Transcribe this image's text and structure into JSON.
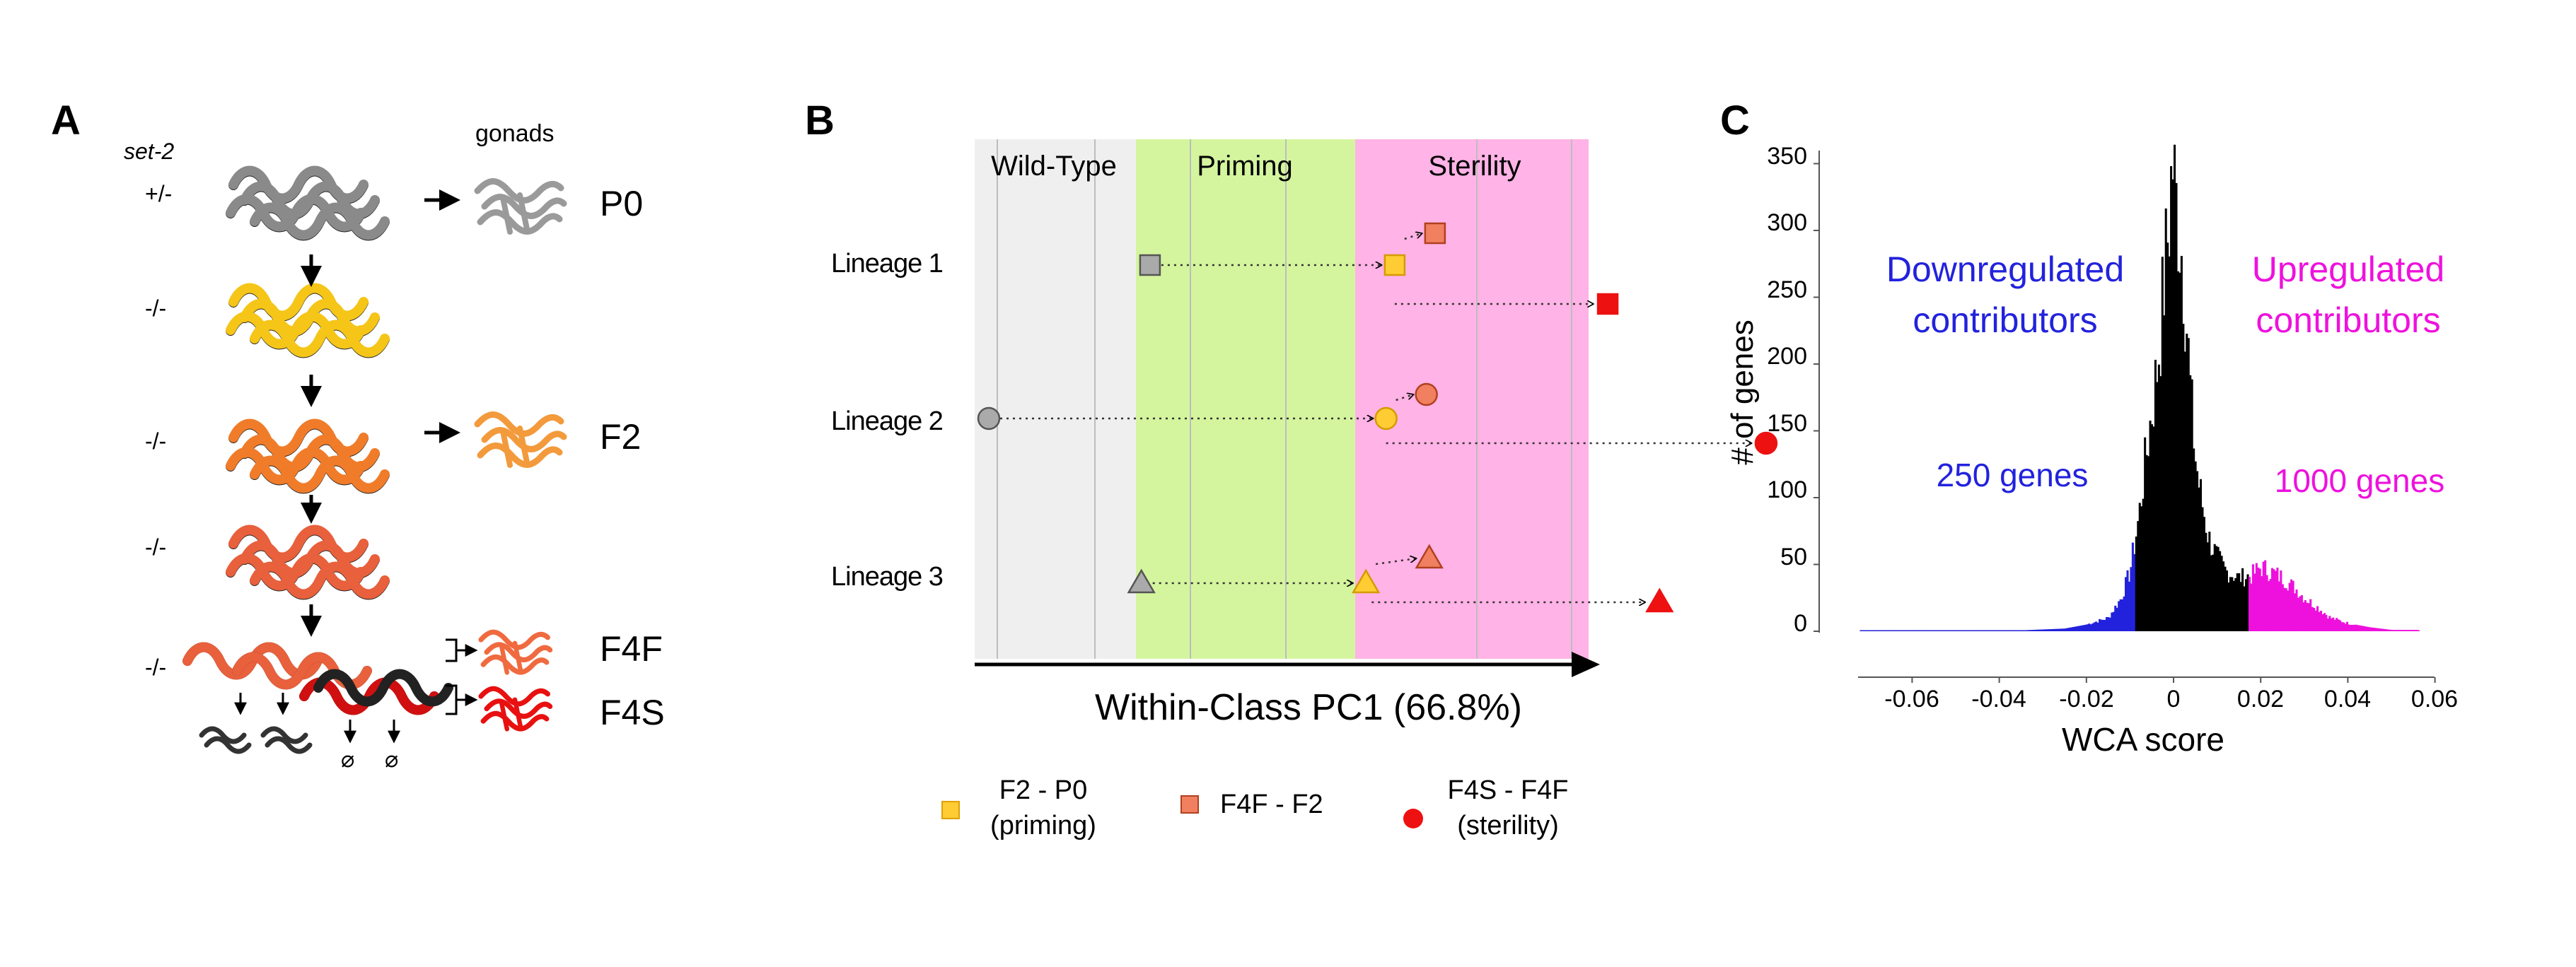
{
  "panels": {
    "a": {
      "letter": "A",
      "genotype_header": "set-2",
      "gonads_header": "gonads",
      "genotypes": [
        "+/-",
        "-/-",
        "-/-",
        "-/-",
        "-/-"
      ],
      "generation_labels": [
        "P0",
        "F2",
        "F4F",
        "F4S"
      ],
      "sterile_marks": [
        "⌀",
        "⌀"
      ],
      "colors": {
        "p0": "#333333",
        "f1": "#f5c518",
        "f2": "#f07c2a",
        "f3": "#e8603c",
        "f4f": "#e8603c",
        "f4s": "#e01010",
        "gonad_p0": "#9a9a9a"
      }
    },
    "b": {
      "letter": "B",
      "regions": [
        {
          "label": "Wild-Type",
          "color": "#efefef"
        },
        {
          "label": "Priming",
          "color": "#d4f59e"
        },
        {
          "label": "Sterility",
          "color": "#ffb3e6"
        }
      ],
      "lineages": [
        "Lineage 1",
        "Lineage 2",
        "Lineage 3"
      ],
      "axis_label": "Within-Class PC1 (66.8%)",
      "legend": [
        {
          "label_line1": "F2 - P0",
          "label_line2": "(priming)",
          "color": "#ffcc33"
        },
        {
          "label_line1": "F4F - F2",
          "label_line2": "",
          "color": "#f08060"
        },
        {
          "label_line1": "F4S - F4F",
          "label_line2": "(sterility)",
          "color": "#ee1111"
        }
      ]
    },
    "c": {
      "letter": "C",
      "ylabel": "# of genes",
      "xlabel": "WCA score",
      "yticks": [
        "350",
        "300",
        "250",
        "200",
        "150",
        "100",
        "50",
        "0"
      ],
      "xticks": [
        "-0.06",
        "-0.04",
        "-0.02",
        "0",
        "0.02",
        "0.04",
        "0.06"
      ],
      "down_label_1": "Downregulated",
      "down_label_2": "contributors",
      "up_label_1": "Upregulated",
      "up_label_2": "contributors",
      "down_count": "250 genes",
      "up_count": "1000 genes",
      "colors": {
        "down": "#2222dd",
        "up": "#ee11dd",
        "center": "#000000"
      }
    }
  },
  "chart_data": [
    {
      "type": "scatter",
      "panel": "B",
      "xlabel": "Within-Class PC1 (66.8%)",
      "ylabel": "",
      "regions": [
        "Wild-Type",
        "Priming",
        "Sterility"
      ],
      "categories": [
        "Lineage 1",
        "Lineage 2",
        "Lineage 3"
      ],
      "series": [
        {
          "name": "F2 - P0",
          "points": [
            {
              "lineage": "Lineage 1",
              "x_from": 0.56,
              "x_to": 1.41
            },
            {
              "lineage": "Lineage 2",
              "x_from": 0.0,
              "x_to": 1.38
            },
            {
              "lineage": "Lineage 3",
              "x_from": 0.53,
              "x_to": 1.31
            }
          ]
        },
        {
          "name": "F4F - F2",
          "points": [
            {
              "lineage": "Lineage 1",
              "x_from": 1.41,
              "x_to": 1.55
            },
            {
              "lineage": "Lineage 2",
              "x_from": 1.38,
              "x_to": 1.52
            },
            {
              "lineage": "Lineage 3",
              "x_from": 1.31,
              "x_to": 1.53
            }
          ]
        },
        {
          "name": "F4S - F4F",
          "points": [
            {
              "lineage": "Lineage 1",
              "x_from": 1.41,
              "x_to": 2.15
            },
            {
              "lineage": "Lineage 2",
              "x_from": 1.38,
              "x_to": 2.7
            },
            {
              "lineage": "Lineage 3",
              "x_from": 1.33,
              "x_to": 2.33
            }
          ]
        }
      ]
    },
    {
      "type": "bar",
      "panel": "C",
      "xlabel": "WCA score",
      "ylabel": "# of genes",
      "xlim": [
        -0.072,
        0.056
      ],
      "ylim": [
        0,
        350
      ],
      "x_ticks": [
        -0.06,
        -0.04,
        -0.02,
        0,
        0.02,
        0.04,
        0.06
      ],
      "y_ticks": [
        0,
        50,
        100,
        150,
        200,
        250,
        300,
        350
      ],
      "profile": [
        [
          -0.072,
          0
        ],
        [
          -0.04,
          0
        ],
        [
          -0.025,
          2
        ],
        [
          -0.02,
          5
        ],
        [
          -0.015,
          10
        ],
        [
          -0.012,
          25
        ],
        [
          -0.01,
          45
        ],
        [
          -0.008,
          85
        ],
        [
          -0.006,
          140
        ],
        [
          -0.004,
          190
        ],
        [
          -0.003,
          225
        ],
        [
          -0.002,
          270
        ],
        [
          -0.001,
          310
        ],
        [
          -0.0003,
          355
        ],
        [
          0.0005,
          320
        ],
        [
          0.001,
          310
        ],
        [
          0.002,
          280
        ],
        [
          0.003,
          230
        ],
        [
          0.004,
          170
        ],
        [
          0.005,
          130
        ],
        [
          0.006,
          105
        ],
        [
          0.008,
          70
        ],
        [
          0.01,
          55
        ],
        [
          0.012,
          45
        ],
        [
          0.015,
          40
        ],
        [
          0.018,
          42
        ],
        [
          0.02,
          48
        ],
        [
          0.022,
          45
        ],
        [
          0.025,
          40
        ],
        [
          0.028,
          32
        ],
        [
          0.03,
          25
        ],
        [
          0.033,
          18
        ],
        [
          0.036,
          10
        ],
        [
          0.04,
          6
        ],
        [
          0.045,
          3
        ],
        [
          0.05,
          1
        ],
        [
          0.056,
          1
        ]
      ],
      "segments": [
        {
          "name": "Downregulated contributors",
          "x_max": -0.009,
          "genes": 250
        },
        {
          "name": "Upregulated contributors",
          "x_min": 0.017,
          "genes": 1000
        }
      ]
    }
  ]
}
